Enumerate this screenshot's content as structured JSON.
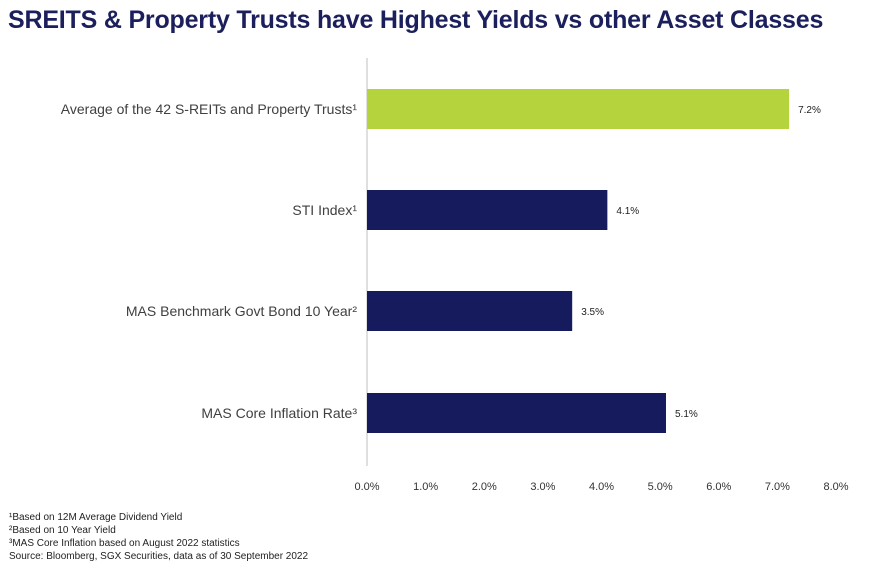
{
  "title": "SREITS & Property Trusts have Highest Yields vs other Asset Classes",
  "colors": {
    "title": "#1b1f5c",
    "highlight": "#b5d33d",
    "bar": "#151b5c",
    "axis": "#bfbfbf",
    "label": "#404040"
  },
  "chart_data": {
    "type": "bar",
    "orientation": "horizontal",
    "categories": [
      "Average of the 42 S-REITs and Property Trusts¹",
      "STI Index¹",
      "MAS Benchmark Govt Bond 10 Year²",
      "MAS Core Inflation Rate³"
    ],
    "values": [
      7.2,
      4.1,
      3.5,
      5.1
    ],
    "data_labels": [
      "7.2%",
      "4.1%",
      "3.5%",
      "5.1%"
    ],
    "bar_colors": [
      "#b5d33d",
      "#151b5c",
      "#151b5c",
      "#151b5c"
    ],
    "xlim": [
      0,
      8
    ],
    "xticks": [
      0,
      1,
      2,
      3,
      4,
      5,
      6,
      7,
      8
    ],
    "xtick_labels": [
      "0.0%",
      "1.0%",
      "2.0%",
      "3.0%",
      "4.0%",
      "5.0%",
      "6.0%",
      "7.0%",
      "8.0%"
    ],
    "grid": false,
    "legend": "none"
  },
  "footnotes": [
    "¹Based on 12M Average Dividend Yield",
    "²Based on 10 Year Yield",
    "³MAS Core Inflation based on August 2022 statistics",
    "Source: Bloomberg, SGX Securities, data as of 30 September 2022"
  ]
}
